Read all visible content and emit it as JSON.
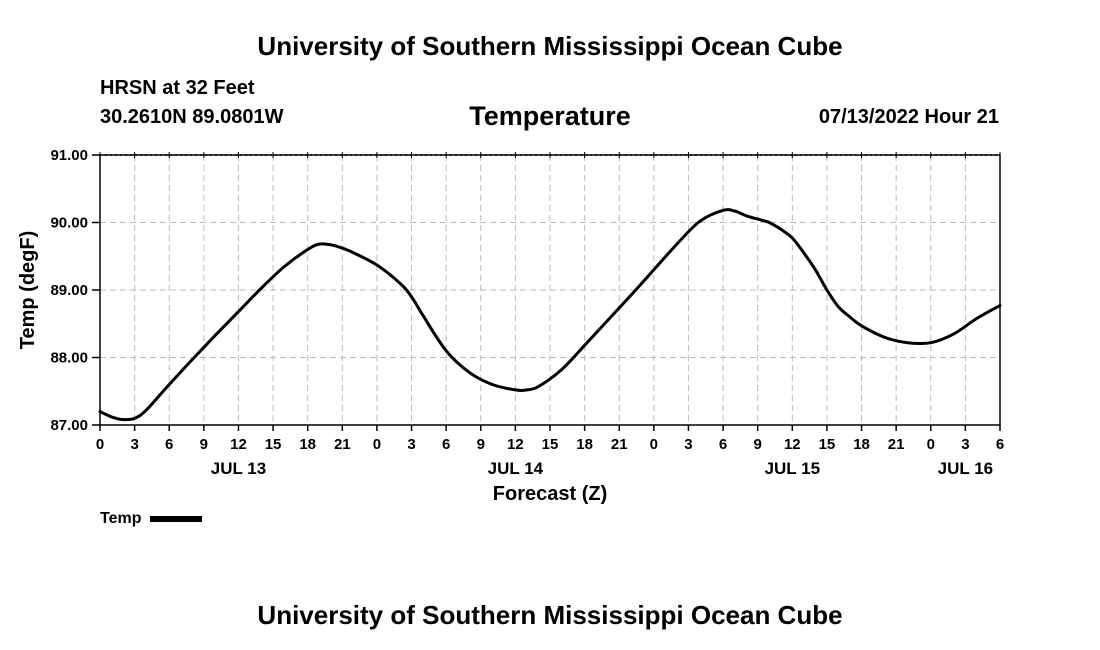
{
  "header": {
    "title": "University of Southern Mississippi Ocean Cube",
    "station": "HRSN at 32 Feet",
    "coords": "30.2610N  89.0801W",
    "variable": "Temperature",
    "run_time": "07/13/2022 Hour 21"
  },
  "footer": {
    "title": "University of Southern Mississippi Ocean Cube"
  },
  "legend": {
    "label": "Temp"
  },
  "chart_data": {
    "type": "line",
    "title": "Temperature",
    "xlabel": "Forecast (Z)",
    "ylabel": "Temp (degF)",
    "x_unit": "hours since JUL 13 00Z",
    "xlim": [
      0,
      78
    ],
    "ylim": [
      87,
      91
    ],
    "y_ticks": [
      "87.00",
      "88.00",
      "89.00",
      "90.00",
      "91.00"
    ],
    "y_tick_values": [
      87,
      88,
      89,
      90,
      91
    ],
    "x_ticks": [
      0,
      3,
      6,
      9,
      12,
      15,
      18,
      21,
      24,
      27,
      30,
      33,
      36,
      39,
      42,
      45,
      48,
      51,
      54,
      57,
      60,
      63,
      66,
      69,
      72,
      75,
      78
    ],
    "x_tick_labels": [
      "0",
      "3",
      "6",
      "9",
      "12",
      "15",
      "18",
      "21",
      "0",
      "3",
      "6",
      "9",
      "12",
      "15",
      "18",
      "21",
      "0",
      "3",
      "6",
      "9",
      "12",
      "15",
      "18",
      "21",
      "0",
      "3",
      "6"
    ],
    "date_labels": [
      {
        "text": "JUL 13",
        "x": 12
      },
      {
        "text": "JUL 14",
        "x": 36
      },
      {
        "text": "JUL 15",
        "x": 60
      },
      {
        "text": "JUL 16",
        "x": 75
      }
    ],
    "grid": true,
    "series": [
      {
        "name": "Temp",
        "color": "#000000",
        "x": [
          0,
          1,
          2,
          3,
          4,
          6,
          8,
          10,
          12,
          14,
          16,
          18,
          19,
          20,
          21,
          22,
          24,
          26,
          27,
          28,
          30,
          32,
          34,
          36,
          37,
          38,
          40,
          42,
          44,
          46,
          48,
          50,
          52,
          54,
          55,
          56,
          57,
          58,
          59,
          60,
          61,
          62,
          63,
          64,
          65,
          66,
          68,
          70,
          72,
          74,
          76,
          78
        ],
        "values": [
          87.2,
          87.12,
          87.08,
          87.1,
          87.22,
          87.6,
          87.97,
          88.33,
          88.68,
          89.03,
          89.35,
          89.6,
          89.68,
          89.67,
          89.62,
          89.55,
          89.37,
          89.1,
          88.9,
          88.62,
          88.1,
          87.78,
          87.6,
          87.52,
          87.52,
          87.57,
          87.82,
          88.18,
          88.55,
          88.92,
          89.3,
          89.68,
          90.02,
          90.18,
          90.17,
          90.1,
          90.05,
          90.0,
          89.9,
          89.77,
          89.55,
          89.3,
          89.0,
          88.75,
          88.6,
          88.47,
          88.3,
          88.22,
          88.22,
          88.35,
          88.58,
          88.77
        ]
      }
    ]
  }
}
